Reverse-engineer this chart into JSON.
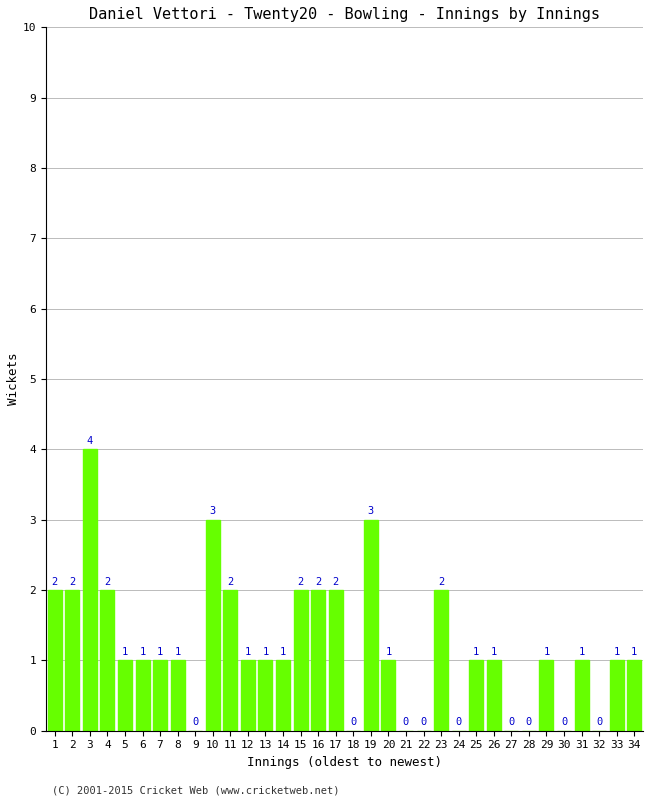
{
  "title": "Daniel Vettori - Twenty20 - Bowling - Innings by Innings",
  "xlabel": "Innings (oldest to newest)",
  "ylabel": "Wickets",
  "footnote": "(C) 2001-2015 Cricket Web (www.cricketweb.net)",
  "innings": [
    1,
    2,
    3,
    4,
    5,
    6,
    7,
    8,
    9,
    10,
    11,
    12,
    13,
    14,
    15,
    16,
    17,
    18,
    19,
    20,
    21,
    22,
    23,
    24,
    25,
    26,
    27,
    28,
    29,
    30,
    31,
    32,
    33,
    34
  ],
  "wickets": [
    2,
    2,
    4,
    2,
    1,
    1,
    1,
    1,
    0,
    3,
    2,
    1,
    1,
    1,
    2,
    2,
    2,
    0,
    3,
    1,
    0,
    0,
    2,
    0,
    1,
    1,
    0,
    0,
    1,
    0,
    1,
    0,
    1,
    1
  ],
  "bar_color": "#66ff00",
  "label_color": "#0000cc",
  "bg_color": "#ffffff",
  "ylim": [
    0,
    10
  ],
  "yticks": [
    0,
    1,
    2,
    3,
    4,
    5,
    6,
    7,
    8,
    9,
    10
  ],
  "title_fontsize": 11,
  "axis_label_fontsize": 9,
  "tick_fontsize": 8,
  "label_fontsize": 7.5,
  "footnote_fontsize": 7.5
}
